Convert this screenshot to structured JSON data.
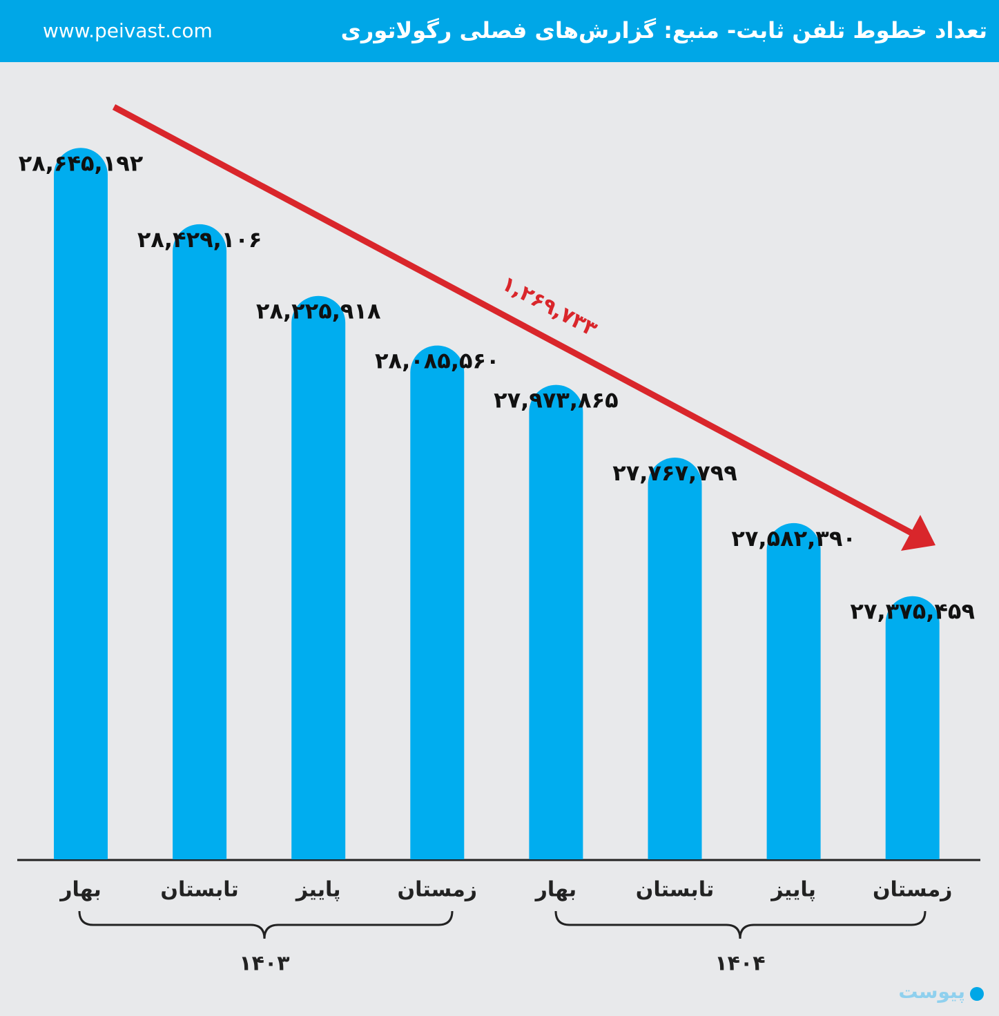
{
  "chart_data": {
    "type": "bar",
    "title": "تعداد خطوط تلفن ثابت- منبع: گزارش‌های فصلی رگولاتوری",
    "website": "www.peivast.com",
    "logo": "پیوست",
    "categories": [
      "بهار",
      "تابستان",
      "پاییز",
      "زمستان",
      "بهار",
      "تابستان",
      "پاییز",
      "زمستان"
    ],
    "groups": [
      "۱۴۰۳",
      "۱۴۰۴"
    ],
    "values": [
      28645192,
      28429106,
      28225918,
      28085560,
      27973865,
      27767799,
      27582390,
      27375459
    ],
    "value_labels": [
      "۲۸,۶۴۵,۱۹۲",
      "۲۸,۴۲۹,۱۰۶",
      "۲۸,۲۲۵,۹۱۸",
      "۲۸,۰۸۵,۵۶۰",
      "۲۷,۹۷۳,۸۶۵",
      "۲۷,۷۶۷,۷۹۹",
      "۲۷,۵۸۲,۳۹۰",
      "۲۷,۳۷۵,۴۵۹"
    ],
    "annotation": "۱,۲۶۹,۷۳۳",
    "color": "#00adef",
    "arrow_color": "#d9262b",
    "ylim": [
      26630000,
      28810000
    ]
  }
}
